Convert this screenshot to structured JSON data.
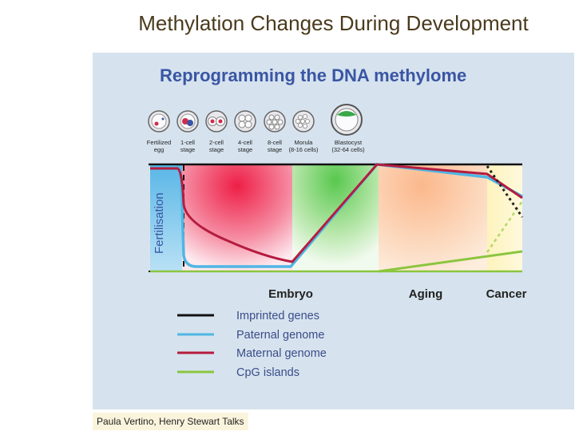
{
  "slide": {
    "title": "Methylation Changes During Development",
    "credit": "Paula Vertino, Henry Stewart Talks"
  },
  "figure": {
    "title": "Reprogramming the DNA methylome",
    "stages": [
      {
        "line1": "Fertilized",
        "line2": "egg"
      },
      {
        "line1": "1-cell",
        "line2": "stage"
      },
      {
        "line1": "2-cell",
        "line2": "stage"
      },
      {
        "line1": "4-cell",
        "line2": "stage"
      },
      {
        "line1": "8-cell",
        "line2": "stage"
      },
      {
        "line1": "Morula",
        "line2": "(8-16 cells)"
      },
      {
        "line1": "Blastocyst",
        "line2": "(32-64 cells)"
      }
    ],
    "fertilisation_label": "Fertilisation",
    "phases": {
      "embryo": "Embryo",
      "aging": "Aging",
      "cancer": "Cancer"
    },
    "legend": [
      {
        "label": "Imprinted genes",
        "color": "#111111"
      },
      {
        "label": "Paternal genome",
        "color": "#4fb6e3"
      },
      {
        "label": "Maternal genome",
        "color": "#b51c3f"
      },
      {
        "label": "CpG islands",
        "color": "#8bc53f"
      }
    ]
  }
}
